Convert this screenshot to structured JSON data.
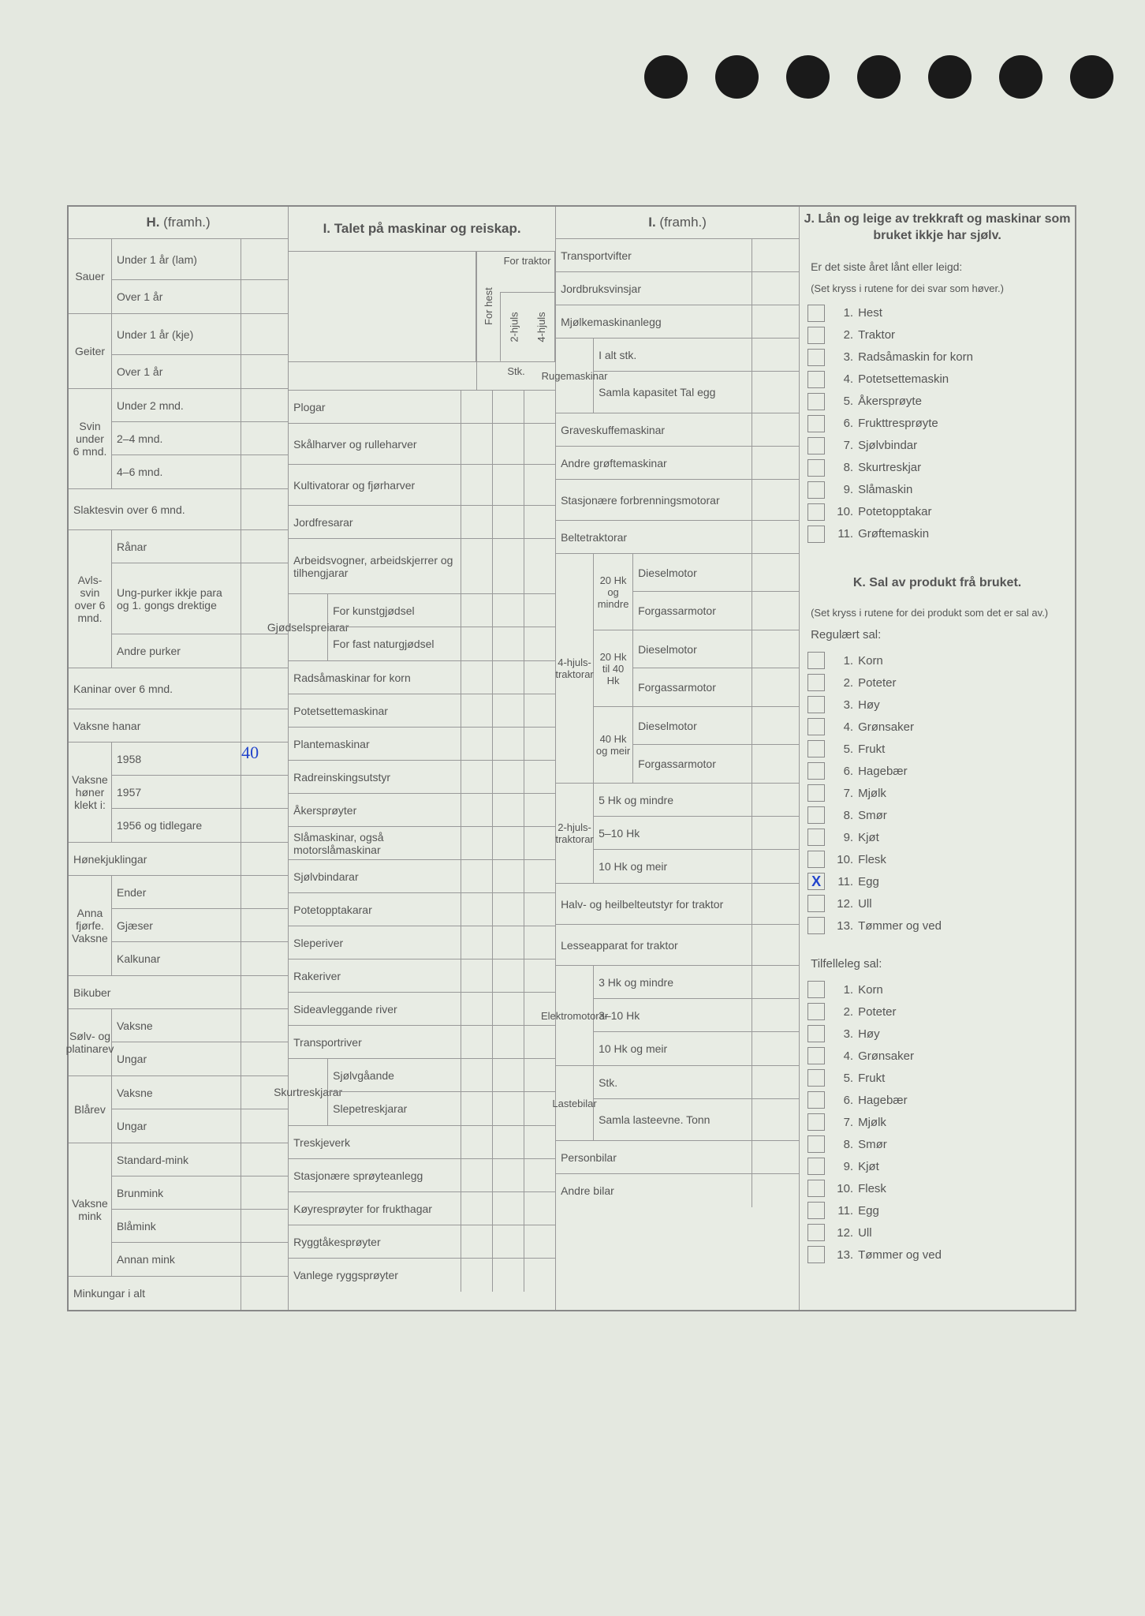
{
  "sections": {
    "H": {
      "title": "H.",
      "titleSuffix": "(framh.)",
      "groups": [
        {
          "label": "Sauer",
          "rows": [
            {
              "text": "Under 1 år (lam)"
            },
            {
              "text": "Over 1 år"
            }
          ]
        },
        {
          "label": "Geiter",
          "rows": [
            {
              "text": "Under 1 år (kje)"
            },
            {
              "text": "Over 1 år"
            }
          ]
        },
        {
          "label": "Svin under 6 mnd.",
          "rows": [
            {
              "text": "Under 2 mnd."
            },
            {
              "text": "2–4 mnd."
            },
            {
              "text": "4–6 mnd."
            }
          ]
        }
      ],
      "single": [
        {
          "text": "Slaktesvin over 6 mnd."
        }
      ],
      "avls": {
        "label": "Avls-svin over 6 mnd.",
        "rows": [
          {
            "text": "Rånar"
          },
          {
            "text": "Ung-purker ikkje para og 1. gongs drektige"
          },
          {
            "text": "Andre purker"
          }
        ]
      },
      "single2": [
        {
          "text": "Kaninar over 6 mnd."
        },
        {
          "text": "Vaksne hanar"
        }
      ],
      "honer": {
        "label": "Vaksne høner klekt i:",
        "rows": [
          {
            "text": "1958",
            "value": "40"
          },
          {
            "text": "1957"
          },
          {
            "text": "1956 og tidlegare"
          }
        ]
      },
      "single3": [
        {
          "text": "Hønekjuklingar"
        }
      ],
      "fjorfe": {
        "label": "Anna fjørfe. Vaksne",
        "rows": [
          {
            "text": "Ender"
          },
          {
            "text": "Gjæser"
          },
          {
            "text": "Kalkunar"
          }
        ]
      },
      "single4": [
        {
          "text": "Bikuber"
        }
      ],
      "solv": {
        "label": "Sølv- og platinarev",
        "rows": [
          {
            "text": "Vaksne"
          },
          {
            "text": "Ungar"
          }
        ]
      },
      "bla": {
        "label": "Blårev",
        "rows": [
          {
            "text": "Vaksne"
          },
          {
            "text": "Ungar"
          }
        ]
      },
      "mink": {
        "label": "Vaksne mink",
        "rows": [
          {
            "text": "Standard-mink"
          },
          {
            "text": "Brunmink"
          },
          {
            "text": "Blåmink"
          },
          {
            "text": "Annan mink"
          }
        ]
      },
      "single5": [
        {
          "text": "Minkungar i alt"
        }
      ]
    },
    "I": {
      "title": "I. Talet på maskinar og reiskap.",
      "colHdrs": {
        "forHest": "For hest",
        "hjuls2": "2-hjuls",
        "hjuls4": "4-hjuls",
        "forTraktor": "For traktor",
        "stk": "Stk."
      },
      "rows": [
        "Plogar",
        "Skålharver og rulleharver",
        "Kultivatorar og fjørharver",
        "Jordfresarar"
      ],
      "rowTall": "Arbeidsvogner, arbeidskjerrer og tilhengjarar",
      "gjodsel": {
        "label": "Gjødselspreiarar",
        "rows": [
          "For kunstgjødsel",
          "For fast naturgjødsel"
        ]
      },
      "rows2": [
        "Radsåmaskinar for korn",
        "Potetsettemaskinar",
        "Plantemaskinar",
        "Radreinskingsutstyr",
        "Åkersprøyter",
        "Slåmaskinar, også motorslåmaskinar",
        "Sjølvbindarar",
        "Potetopptakarar",
        "Sleperiver",
        "Rakeriver",
        "Sideavleggande river",
        "Transportriver"
      ],
      "skur": {
        "label": "Skurtreskjarar",
        "rows": [
          "Sjølvgåande",
          "Slepetreskjarar"
        ]
      },
      "rows3": [
        "Treskjeverk",
        "Stasjonære sprøyteanlegg",
        "Køyresprøyter for frukthagar",
        "Ryggtåkesprøyter",
        "Vanlege ryggsprøyter"
      ]
    },
    "I2": {
      "title": "I.",
      "titleSuffix": "(framh.)",
      "rows1": [
        "Transportvifter",
        "Jordbruksvinsjar",
        "Mjølkemaskinanlegg"
      ],
      "ruge": {
        "label": "Rugemaskinar",
        "rows": [
          "I alt stk.",
          "Samla kapasitet Tal egg"
        ]
      },
      "rows2": [
        "Graveskuffemaskinar",
        "Andre grøftemaskinar",
        "Stasjonære forbrenningsmotorar",
        "Beltetraktorar"
      ],
      "hjuls4": {
        "label": "4-hjuls-traktorar",
        "groups": [
          {
            "label": "20 Hk og mindre",
            "rows": [
              "Dieselmotor",
              "Forgassarmotor"
            ]
          },
          {
            "label": "20 Hk til 40 Hk",
            "rows": [
              "Dieselmotor",
              "Forgassarmotor"
            ]
          },
          {
            "label": "40 Hk og meir",
            "rows": [
              "Dieselmotor",
              "Forgassarmotor"
            ]
          }
        ]
      },
      "hjuls2": {
        "label": "2-hjuls-traktorar",
        "rows": [
          "5 Hk og mindre",
          "5–10 Hk",
          "10 Hk og meir"
        ]
      },
      "rows3": [
        "Halv- og heilbelteutstyr for traktor",
        "Lesseapparat for traktor"
      ],
      "elektro": {
        "label": "Elektromotorar",
        "rows": [
          "3 Hk og mindre",
          "3–10 Hk",
          "10 Hk og meir"
        ]
      },
      "laste": {
        "label": "Lastebilar",
        "rows": [
          "Stk.",
          "Samla lasteevne. Tonn"
        ]
      },
      "rows4": [
        "Personbilar",
        "Andre bilar"
      ]
    },
    "J": {
      "title": "J. Lån og leige av trekkraft og maskinar som bruket ikkje har sjølv.",
      "sub": "Er det siste året lånt eller leigd:",
      "note": "(Set kryss i rutene for dei svar som høver.)",
      "items": [
        "Hest",
        "Traktor",
        "Radsåmaskin for korn",
        "Potetsettemaskin",
        "Åkersprøyte",
        "Frukttresprøyte",
        "Sjølvbindar",
        "Skurtreskjar",
        "Slåmaskin",
        "Potetopptakar",
        "Grøftemaskin"
      ]
    },
    "K": {
      "title": "K. Sal av produkt frå bruket.",
      "note": "(Set kryss i rutene for dei produkt som det er sal av.)",
      "reg": {
        "title": "Regulært sal:",
        "items": [
          "Korn",
          "Poteter",
          "Høy",
          "Grønsaker",
          "Frukt",
          "Hagebær",
          "Mjølk",
          "Smør",
          "Kjøt",
          "Flesk",
          "Egg",
          "Ull",
          "Tømmer og ved"
        ],
        "checked": [
          10
        ]
      },
      "til": {
        "title": "Tilfelleleg sal:",
        "items": [
          "Korn",
          "Poteter",
          "Høy",
          "Grønsaker",
          "Frukt",
          "Hagebær",
          "Mjølk",
          "Smør",
          "Kjøt",
          "Flesk",
          "Egg",
          "Ull",
          "Tømmer og ved"
        ]
      }
    }
  }
}
